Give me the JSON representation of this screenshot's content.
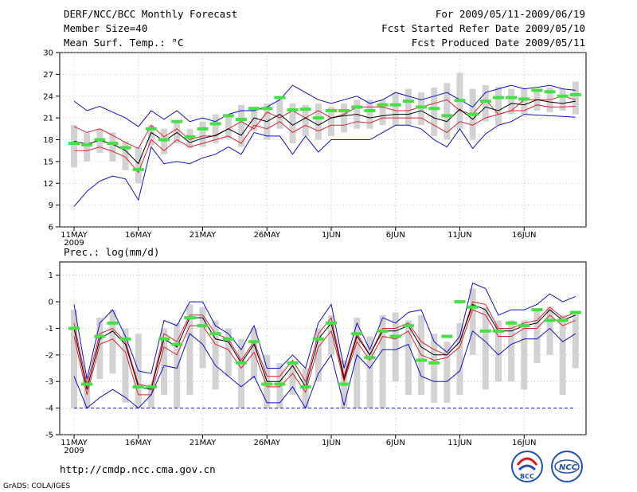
{
  "header": {
    "title": "DERF/NCC/BCC Monthly Forecast",
    "member": "Member Size=40",
    "variable": "Mean Surf. Temp.: °C",
    "period": "For 2009/05/11-2009/06/19",
    "refer": "Fcst Started Refer Date 2009/05/10",
    "produced": "Fcst Produced Date 2009/05/11"
  },
  "footer": {
    "url": "http://cmdp.ncc.cma.gov.cn",
    "grads": "GrADS: COLA/IGES",
    "logo1": "BCC",
    "logo2": "NCC"
  },
  "colors": {
    "ensemble_mean": "#000000",
    "spread": "#e02030",
    "extreme": "#1010c8",
    "member_box": "#d2d2d2",
    "observed": "#44e044",
    "dashed": "#1010c8"
  },
  "chart_data": [
    {
      "type": "line",
      "title": "Mean Surf. Temp.: °C",
      "x_tick_labels": [
        "11MAY",
        "16MAY",
        "21MAY",
        "26MAY",
        "1JUN",
        "6JUN",
        "11JUN",
        "16JUN"
      ],
      "x_sub_label": "2009",
      "ylim": [
        6,
        30
      ],
      "yticks": [
        6,
        9,
        12,
        15,
        18,
        21,
        24,
        27,
        30
      ],
      "series": [
        {
          "name": "max",
          "values": [
            23.3,
            22.0,
            22.6,
            21.8,
            21.0,
            19.8,
            22.0,
            20.8,
            22.0,
            20.5,
            21.0,
            20.5,
            21.5,
            22.0,
            22.0,
            22.5,
            23.5,
            25.5,
            24.5,
            23.5,
            23.0,
            23.5,
            24.0,
            23.0,
            23.5,
            24.5,
            24.0,
            23.5,
            24.0,
            24.5,
            23.5,
            22.5,
            24.5,
            25.0,
            25.5,
            25.0,
            25.2,
            25.5,
            25.0,
            24.8
          ]
        },
        {
          "name": "upper",
          "values": [
            19.8,
            19.0,
            19.5,
            18.6,
            17.6,
            16.8,
            20.0,
            18.4,
            19.5,
            18.0,
            18.5,
            18.5,
            19.5,
            20.5,
            19.5,
            21.8,
            21.0,
            22.0,
            21.0,
            22.0,
            21.0,
            21.5,
            22.5,
            22.5,
            22.5,
            22.0,
            22.0,
            22.5,
            23.0,
            23.5,
            22.0,
            21.5,
            23.5,
            21.5,
            22.0,
            23.5,
            23.5,
            23.5,
            24.0,
            23.5
          ]
        },
        {
          "name": "mean",
          "values": [
            17.8,
            17.4,
            17.9,
            17.4,
            16.5,
            14.7,
            19.0,
            17.8,
            19.0,
            17.6,
            18.2,
            18.6,
            19.5,
            18.6,
            21.0,
            20.5,
            21.5,
            20.0,
            21.0,
            20.0,
            21.0,
            21.3,
            21.5,
            21.0,
            21.3,
            21.5,
            21.5,
            22.0,
            21.0,
            20.5,
            22.2,
            20.8,
            22.5,
            22.0,
            23.0,
            22.8,
            23.5,
            23.2,
            23.0,
            23.3
          ]
        },
        {
          "name": "lower",
          "values": [
            16.5,
            16.5,
            17.0,
            16.4,
            15.6,
            13.5,
            18.0,
            16.5,
            18.0,
            17.0,
            17.5,
            18.0,
            18.5,
            17.5,
            20.0,
            19.5,
            20.5,
            19.0,
            20.0,
            19.2,
            20.0,
            20.0,
            20.5,
            20.3,
            21.0,
            21.0,
            21.0,
            21.0,
            20.0,
            19.0,
            20.5,
            20.0,
            21.0,
            21.5,
            22.0,
            22.0,
            22.8,
            22.5,
            22.5,
            22.6
          ]
        },
        {
          "name": "min",
          "values": [
            8.8,
            10.9,
            12.3,
            13.0,
            12.6,
            9.7,
            17.0,
            14.7,
            15.0,
            14.7,
            15.5,
            16.0,
            17.0,
            16.0,
            19.0,
            18.5,
            18.5,
            16.0,
            18.5,
            16.3,
            18.0,
            18.0,
            18.0,
            18.0,
            19.0,
            20.0,
            20.0,
            19.5,
            18.0,
            17.0,
            19.5,
            16.8,
            18.8,
            20.0,
            20.5,
            21.5,
            21.4,
            21.3,
            21.2,
            21.1
          ]
        }
      ],
      "member_range": {
        "low": [
          14.2,
          15.0,
          16.2,
          15.0,
          13.8,
          12.0,
          17.2,
          16.0,
          17.5,
          16.8,
          17.0,
          17.5,
          18.2,
          17.0,
          19.2,
          18.0,
          19.5,
          17.5,
          18.5,
          18.0,
          18.5,
          19.0,
          19.5,
          19.5,
          20.0,
          20.0,
          20.0,
          20.0,
          18.5,
          18.0,
          19.5,
          18.0,
          20.5,
          20.0,
          21.5,
          21.5,
          22.0,
          21.8,
          22.0,
          21.5
        ],
        "high": [
          20.0,
          19.0,
          19.5,
          19.0,
          17.8,
          17.0,
          20.0,
          19.5,
          20.5,
          19.5,
          20.5,
          21.5,
          21.5,
          22.8,
          22.5,
          23.0,
          23.5,
          23.0,
          22.8,
          23.0,
          22.5,
          23.0,
          23.5,
          23.5,
          23.5,
          24.5,
          25.0,
          24.5,
          25.2,
          25.8,
          27.2,
          25.0,
          25.5,
          25.3,
          25.0,
          25.0,
          25.0,
          25.2,
          25.0,
          26.0
        ]
      },
      "observed": [
        17.5,
        17.3,
        18.0,
        17.5,
        16.9,
        13.9,
        19.5,
        18.0,
        20.5,
        18.4,
        19.5,
        20.2,
        21.3,
        20.8,
        22.3,
        22.3,
        23.8,
        22.1,
        22.2,
        21.0,
        22.0,
        22.0,
        22.5,
        22.0,
        22.8,
        22.8,
        23.3,
        22.5,
        22.3,
        21.3,
        23.4,
        21.5,
        23.3,
        23.8,
        23.8,
        23.6,
        24.8,
        24.6,
        24.0,
        24.2
      ]
    },
    {
      "type": "line",
      "title": "Prec.: log(mm/d)",
      "x_tick_labels": [
        "11MAY",
        "16MAY",
        "21MAY",
        "26MAY",
        "1JUN",
        "6JUN",
        "11JUN",
        "16JUN"
      ],
      "x_sub_label": "2009",
      "ylim": [
        -5,
        1.5
      ],
      "yticks": [
        -5,
        -4,
        -3,
        -2,
        -1,
        0,
        1
      ],
      "series": [
        {
          "name": "max",
          "values": [
            -0.1,
            -2.9,
            -0.8,
            -0.3,
            -1.3,
            -2.6,
            -2.7,
            -0.7,
            -0.9,
            0.0,
            0.0,
            -0.9,
            -1.2,
            -1.8,
            -0.9,
            -2.5,
            -2.5,
            -2.0,
            -2.5,
            -0.8,
            -0.1,
            -2.5,
            -0.8,
            -1.8,
            -0.6,
            -0.8,
            -0.4,
            -0.3,
            -1.5,
            -1.9,
            -1.3,
            0.7,
            0.5,
            -0.5,
            -0.3,
            -0.3,
            -0.1,
            0.3,
            0.0,
            0.2
          ]
        },
        {
          "name": "upper",
          "values": [
            -0.8,
            -3.1,
            -1.2,
            -1.0,
            -1.5,
            -3.1,
            -3.2,
            -1.2,
            -1.5,
            -0.5,
            -0.5,
            -1.2,
            -1.4,
            -2.2,
            -1.5,
            -2.8,
            -2.8,
            -2.2,
            -3.0,
            -1.2,
            -0.6,
            -2.8,
            -1.2,
            -2.0,
            -1.0,
            -1.0,
            -0.8,
            -1.5,
            -1.8,
            -2.0,
            -1.5,
            0.0,
            -0.1,
            -1.0,
            -1.0,
            -0.8,
            -0.7,
            -0.2,
            -0.6,
            -0.4
          ]
        },
        {
          "name": "mean",
          "values": [
            -1.0,
            -3.3,
            -1.4,
            -1.1,
            -1.6,
            -3.2,
            -3.3,
            -1.4,
            -1.7,
            -0.6,
            -0.6,
            -1.4,
            -1.5,
            -2.3,
            -1.6,
            -3.0,
            -3.0,
            -2.4,
            -3.2,
            -1.4,
            -0.8,
            -2.9,
            -1.3,
            -2.0,
            -1.1,
            -1.1,
            -0.9,
            -1.7,
            -2.0,
            -2.0,
            -1.5,
            -0.1,
            -0.3,
            -1.1,
            -1.1,
            -0.9,
            -0.8,
            -0.3,
            -0.7,
            -0.5
          ]
        },
        {
          "name": "lower",
          "values": [
            -1.3,
            -3.5,
            -1.6,
            -1.4,
            -1.9,
            -3.5,
            -3.5,
            -1.7,
            -2.0,
            -0.9,
            -0.9,
            -1.6,
            -1.8,
            -2.5,
            -1.9,
            -3.2,
            -3.2,
            -2.7,
            -3.4,
            -1.7,
            -1.1,
            -3.0,
            -1.5,
            -2.2,
            -1.3,
            -1.4,
            -1.1,
            -2.0,
            -2.2,
            -2.1,
            -1.7,
            -0.3,
            -0.5,
            -1.3,
            -1.3,
            -1.0,
            -1.0,
            -0.5,
            -0.9,
            -0.7
          ]
        },
        {
          "name": "min",
          "values": [
            -2.8,
            -4.0,
            -3.6,
            -3.3,
            -3.6,
            -4.0,
            -3.5,
            -2.4,
            -2.5,
            -1.2,
            -1.6,
            -2.4,
            -2.8,
            -3.2,
            -2.8,
            -3.8,
            -3.8,
            -3.2,
            -4.0,
            -2.7,
            -2.0,
            -3.9,
            -2.0,
            -2.5,
            -1.8,
            -1.8,
            -1.6,
            -2.8,
            -3.0,
            -3.0,
            -2.6,
            -1.1,
            -1.5,
            -2.0,
            -1.6,
            -1.4,
            -1.4,
            -1.0,
            -1.5,
            -1.2
          ]
        }
      ],
      "member_range": {
        "low": [
          -4.0,
          -4.0,
          -2.9,
          -2.7,
          -3.8,
          -4.0,
          -4.0,
          -3.5,
          -4.0,
          -3.5,
          -2.5,
          -3.3,
          -2.8,
          -4.0,
          -2.9,
          -4.0,
          -4.0,
          -3.5,
          -4.0,
          -3.0,
          -2.0,
          -4.0,
          -4.0,
          -4.0,
          -4.0,
          -3.0,
          -3.5,
          -3.5,
          -3.8,
          -3.8,
          -3.5,
          -2.0,
          -3.3,
          -3.0,
          -3.0,
          -3.3,
          -2.3,
          -2.0,
          -3.5,
          -2.5
        ],
        "high": [
          -0.3,
          -2.8,
          -0.6,
          -0.3,
          -1.0,
          -1.2,
          -3.1,
          -1.0,
          -0.8,
          -0.1,
          -0.2,
          -0.7,
          -1.0,
          -1.4,
          -1.0,
          -2.0,
          -2.3,
          -2.3,
          -2.5,
          -1.0,
          -0.5,
          -2.2,
          -0.6,
          -1.3,
          -0.5,
          -0.4,
          -0.7,
          -0.5,
          -1.2,
          -1.5,
          -0.8,
          0.5,
          -0.2,
          -0.7,
          -0.7,
          -0.7,
          -0.3,
          -0.2,
          -0.5,
          -0.4
        ]
      },
      "observed": [
        -1.0,
        -3.1,
        -1.3,
        -0.8,
        -1.4,
        -3.2,
        -3.2,
        -1.4,
        -1.6,
        -0.6,
        -0.9,
        -1.2,
        -1.4,
        -2.3,
        -1.5,
        -3.1,
        -3.1,
        -2.3,
        -3.2,
        -1.4,
        -0.8,
        -3.1,
        -1.2,
        -2.1,
        -1.1,
        -1.3,
        -0.9,
        -2.2,
        -2.3,
        -1.3,
        0.0,
        -0.2,
        -1.1,
        -1.1,
        -0.8,
        -0.9,
        -0.3,
        -0.7,
        -0.7,
        -0.4
      ],
      "reference_line": -4
    }
  ]
}
